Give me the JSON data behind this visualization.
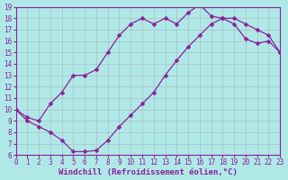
{
  "xlabel": "Windchill (Refroidissement éolien,°C)",
  "bg_color": "#b0e8e8",
  "grid_color": "#aaaaaa",
  "line_color": "#882299",
  "xlim": [
    0,
    23
  ],
  "ylim": [
    6,
    19
  ],
  "xticks": [
    0,
    1,
    2,
    3,
    4,
    5,
    6,
    7,
    8,
    9,
    10,
    11,
    12,
    13,
    14,
    15,
    16,
    17,
    18,
    19,
    20,
    21,
    22,
    23
  ],
  "yticks": [
    6,
    7,
    8,
    9,
    10,
    11,
    12,
    13,
    14,
    15,
    16,
    17,
    18,
    19
  ],
  "line1_x": [
    0,
    1,
    2,
    3,
    4,
    5,
    6,
    7,
    8,
    9,
    10,
    11,
    12,
    13,
    14,
    15,
    16,
    17,
    18,
    19,
    20,
    21,
    22,
    23
  ],
  "line1_y": [
    10,
    9,
    8.5,
    8,
    7.3,
    6.3,
    6.3,
    6.4,
    7.3,
    8.5,
    9.5,
    10.5,
    11.5,
    13.0,
    14.3,
    15.5,
    16.5,
    17.5,
    18.0,
    18.0,
    17.5,
    17.0,
    16.5,
    15.0
  ],
  "line2_x": [
    0,
    1,
    2,
    3,
    4,
    5,
    6,
    7,
    8,
    9,
    10,
    11,
    12,
    13,
    14,
    15,
    16,
    17,
    18,
    19,
    20,
    21,
    22,
    23
  ],
  "line2_y": [
    10,
    9.3,
    9.0,
    10.5,
    11.5,
    13.0,
    13.0,
    13.5,
    15.0,
    16.5,
    17.5,
    18.0,
    17.5,
    18.0,
    17.5,
    18.5,
    19.2,
    18.2,
    18.0,
    17.5,
    16.2,
    15.8,
    16.0,
    15.0
  ],
  "marker": "D",
  "marker_size": 2.5,
  "tick_font_size": 5.5,
  "label_font_size": 6.5,
  "linewidth": 0.9
}
